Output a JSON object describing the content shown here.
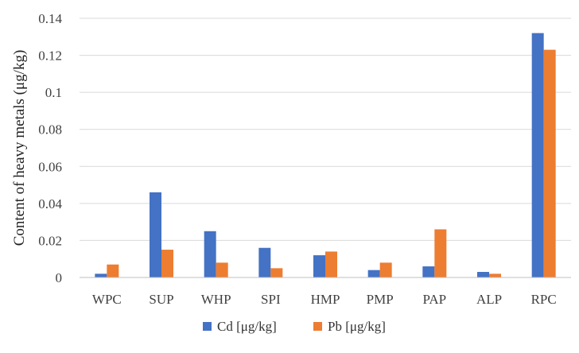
{
  "chart_data": {
    "type": "bar",
    "categories": [
      "WPC",
      "SUP",
      "WHP",
      "SPI",
      "HMP",
      "PMP",
      "PAP",
      "ALP",
      "RPC"
    ],
    "series": [
      {
        "name": "Cd [μg/kg]",
        "color": "#4472C4",
        "values": [
          0.002,
          0.046,
          0.025,
          0.016,
          0.012,
          0.004,
          0.006,
          0.003,
          0.132
        ]
      },
      {
        "name": "Pb [μg/kg]",
        "color": "#ED7D31",
        "values": [
          0.007,
          0.015,
          0.008,
          0.005,
          0.014,
          0.008,
          0.026,
          0.002,
          0.123
        ]
      }
    ],
    "ylabel": "Content of heavy metals (μg/kg)",
    "xlabel": "",
    "ylim": [
      0,
      0.14
    ],
    "yticks": [
      "0",
      "0.02",
      "0.04",
      "0.06",
      "0.08",
      "0.1",
      "0.12",
      "0.14"
    ],
    "grid": true,
    "legend_position": "bottom"
  }
}
